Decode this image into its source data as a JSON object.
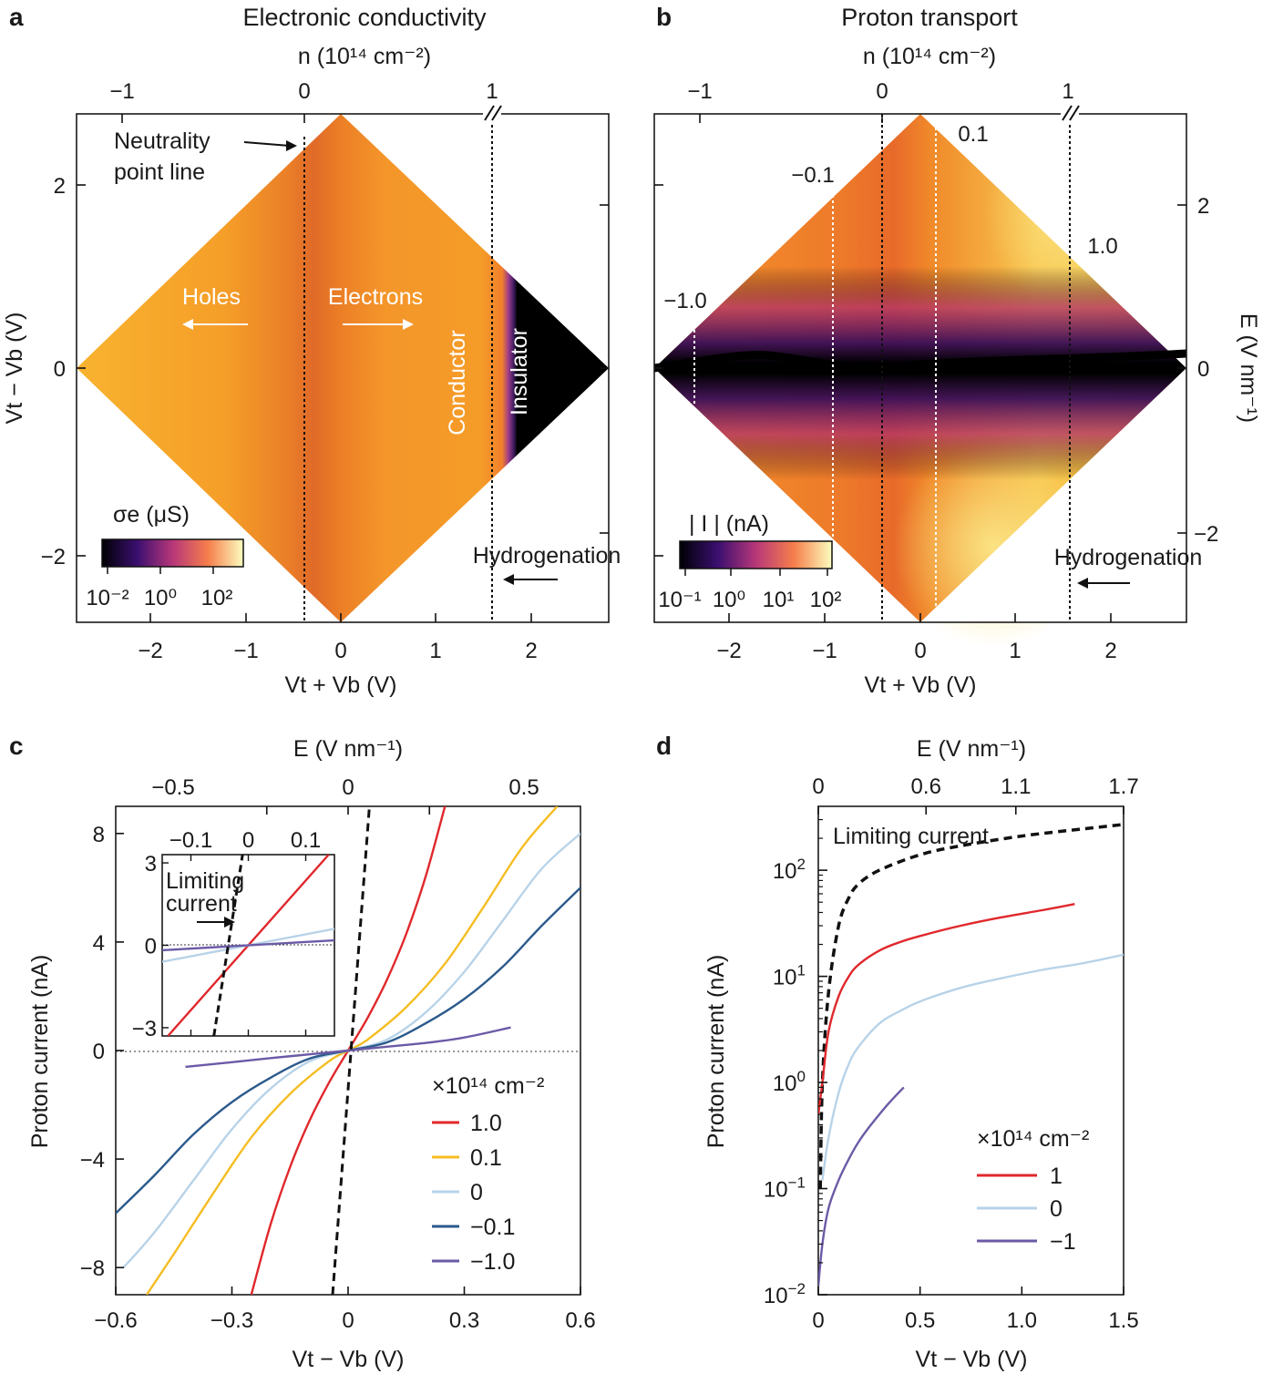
{
  "panels": {
    "a": {
      "letter": "a",
      "title": "Electronic conductivity",
      "top_axis": "n (10¹⁴ cm⁻²)",
      "top_ticks": [
        "−1",
        "0",
        "1"
      ],
      "x_label": "Vt + Vb (V)",
      "y_label": "Vt − Vb (V)",
      "x_ticks": [
        "−2",
        "−1",
        "0",
        "1",
        "2"
      ],
      "y_ticks": [
        "2",
        "0",
        "−2"
      ],
      "annotations": {
        "neutrality_1": "Neutrality",
        "neutrality_2": "point line",
        "holes": "Holes",
        "electrons": "Electrons",
        "conductor": "Conductor",
        "insulator": "Insulator",
        "hydrogenation": "Hydrogenation"
      },
      "colorbar": {
        "label": "σe (μS)",
        "ticks": [
          "10⁻²",
          "10⁰",
          "10²"
        ]
      }
    },
    "b": {
      "letter": "b",
      "title": "Proton transport",
      "top_axis": "n (10¹⁴ cm⁻²)",
      "top_ticks": [
        "−1",
        "0",
        "1"
      ],
      "x_label": "Vt + Vb (V)",
      "right_label": "E (V nm⁻¹)",
      "x_ticks": [
        "−2",
        "−1",
        "0",
        "1",
        "2"
      ],
      "right_ticks": [
        "2",
        "0",
        "−2"
      ],
      "line_labels": [
        "−1.0",
        "−0.1",
        "0.1",
        "1.0"
      ],
      "hydrogenation": "Hydrogenation",
      "colorbar": {
        "label": "| I | (nA)",
        "ticks": [
          "10⁻¹",
          "10⁰",
          "10¹",
          "10²"
        ]
      }
    },
    "c": {
      "letter": "c",
      "top_axis": "E (V nm⁻¹)",
      "top_ticks": [
        "−0.5",
        "0",
        "0.5"
      ],
      "x_label": "Vt − Vb (V)",
      "y_label": "Proton current (nA)",
      "inset_label_1": "Limiting",
      "inset_label_2": "current",
      "inset_x_ticks": [
        "−0.1",
        "0",
        "0.1"
      ],
      "inset_y_ticks": [
        "3",
        "0",
        "−3"
      ],
      "legend_title": "×10¹⁴ cm⁻²"
    },
    "d": {
      "letter": "d",
      "top_axis": "E (V nm⁻¹)",
      "top_ticks": [
        "0",
        "0.6",
        "1.1",
        "1.7"
      ],
      "x_label": "Vt − Vb (V)",
      "y_label": "Proton current (nA)",
      "limiting_label": "Limiting current",
      "legend_title": "×10¹⁴ cm⁻²"
    }
  },
  "chart_data": [
    {
      "panel": "a",
      "type": "heatmap",
      "title": "Electronic conductivity",
      "xlabel": "Vt + Vb (V)",
      "ylabel": "Vt − Vb (V)",
      "xlim": [
        -2.8,
        2.8
      ],
      "ylim": [
        -2.8,
        2.8
      ],
      "x_ticks": [
        -2,
        -1,
        0,
        1,
        2
      ],
      "y_ticks": [
        -2,
        0,
        2
      ],
      "top_ticks_n": [
        -1,
        0,
        1
      ],
      "top_ticks_x": [
        -2.3,
        -0.4,
        1.58
      ],
      "neutrality_x": -0.4,
      "hydrogenation_x": 1.58,
      "insulator_from_x": 1.55,
      "colorbar_range_uS": [
        0.01,
        500
      ]
    },
    {
      "panel": "b",
      "type": "heatmap",
      "title": "Proton transport",
      "xlabel": "Vt + Vb (V)",
      "right_label": "E (V nm⁻¹)",
      "xlim": [
        -2.8,
        2.8
      ],
      "ylim": [
        -2.8,
        2.8
      ],
      "x_ticks": [
        -2,
        -1,
        0,
        1,
        2
      ],
      "top_ticks_n": [
        -1,
        0,
        1
      ],
      "top_ticks_x": [
        -2.3,
        -0.4,
        1.58
      ],
      "right_ticks_E": [
        -2,
        0,
        2
      ],
      "constant_n_lines": [
        {
          "label": "−1.0",
          "x": -2.4,
          "n": -1.0
        },
        {
          "label": "−0.1",
          "x": -0.95,
          "n": -0.1
        },
        {
          "label": "0",
          "x": -0.4,
          "n": 0
        },
        {
          "label": "0.1",
          "x": 0.15,
          "n": 0.1
        },
        {
          "label": "1.0",
          "x": 1.58,
          "n": 1.0
        }
      ],
      "colorbar_range_nA": [
        0.1,
        150
      ]
    },
    {
      "panel": "c",
      "type": "line",
      "xlabel": "Vt − Vb (V)",
      "ylabel": "Proton current (nA)",
      "xlim": [
        -0.6,
        0.6
      ],
      "ylim": [
        -9,
        9
      ],
      "x_ticks": [
        -0.6,
        -0.3,
        0,
        0.3,
        0.6
      ],
      "y_ticks": [
        -8,
        -4,
        0,
        4,
        8
      ],
      "top_axis": "E (V nm⁻¹)",
      "top_ticks": [
        -0.5,
        0,
        0.5
      ],
      "legend_title": "×10¹⁴ cm⁻²",
      "series": [
        {
          "name": "1.0",
          "color": "#e0282c",
          "x": [
            -0.25,
            -0.2,
            -0.15,
            -0.1,
            -0.05,
            0,
            0.05,
            0.1,
            0.15,
            0.2,
            0.25
          ],
          "y": [
            -9.0,
            -6.4,
            -4.3,
            -2.6,
            -1.2,
            0,
            1.2,
            2.6,
            4.3,
            6.4,
            9.0
          ]
        },
        {
          "name": "0.1",
          "color": "#f5bd22",
          "x": [
            -0.52,
            -0.45,
            -0.35,
            -0.25,
            -0.15,
            -0.05,
            0,
            0.05,
            0.15,
            0.25,
            0.35,
            0.45,
            0.54
          ],
          "y": [
            -9.0,
            -7.5,
            -5.3,
            -3.2,
            -1.6,
            -0.4,
            0,
            0.4,
            1.6,
            3.2,
            5.3,
            7.5,
            9.0
          ]
        },
        {
          "name": "0",
          "color": "#b8d3e8",
          "x": [
            -0.58,
            -0.5,
            -0.4,
            -0.3,
            -0.2,
            -0.1,
            0,
            0.1,
            0.2,
            0.3,
            0.4,
            0.5,
            0.6
          ],
          "y": [
            -8.0,
            -6.7,
            -4.8,
            -2.9,
            -1.4,
            -0.4,
            0,
            0.4,
            1.4,
            2.9,
            4.8,
            6.7,
            8.0
          ]
        },
        {
          "name": "−0.1",
          "color": "#2c5a8c",
          "x": [
            -0.6,
            -0.5,
            -0.4,
            -0.3,
            -0.2,
            -0.1,
            0,
            0.1,
            0.2,
            0.3,
            0.4,
            0.5,
            0.6
          ],
          "y": [
            -6.0,
            -4.6,
            -3.1,
            -1.9,
            -1.0,
            -0.3,
            0,
            0.3,
            1.0,
            1.9,
            3.1,
            4.6,
            6.0
          ]
        },
        {
          "name": "−1.0",
          "color": "#6b5aa6",
          "x": [
            -0.42,
            -0.3,
            -0.2,
            -0.1,
            0,
            0.1,
            0.2,
            0.3,
            0.42
          ],
          "y": [
            -0.6,
            -0.43,
            -0.28,
            -0.14,
            0,
            0.14,
            0.28,
            0.48,
            0.85
          ]
        },
        {
          "name": "Limiting current",
          "color": "#111111",
          "dashed": true,
          "x": [
            -0.04,
            0.055
          ],
          "y": [
            -9.0,
            9.0
          ]
        }
      ],
      "inset": {
        "label": "Limiting current",
        "xlim": [
          -0.15,
          0.15
        ],
        "ylim": [
          -3.3,
          3.3
        ],
        "x_ticks": [
          -0.1,
          0,
          0.1
        ],
        "y_ticks": [
          -3,
          0,
          3
        ],
        "series": [
          {
            "name": "1.0",
            "color": "#e0282c",
            "x": [
              -0.14,
              0.14
            ],
            "y": [
              -3.3,
              3.3
            ]
          },
          {
            "name": "0",
            "color": "#b8d3e8",
            "x": [
              -0.15,
              0.15
            ],
            "y": [
              -0.6,
              0.6
            ]
          },
          {
            "name": "−1.0",
            "color": "#6b5aa6",
            "x": [
              -0.15,
              0.15
            ],
            "y": [
              -0.18,
              0.18
            ]
          },
          {
            "name": "Limiting current",
            "color": "#111111",
            "dashed": true,
            "x": [
              -0.06,
              -0.01
            ],
            "y": [
              -3.3,
              3.3
            ]
          }
        ]
      }
    },
    {
      "panel": "d",
      "type": "line",
      "xlabel": "Vt − Vb (V)",
      "ylabel": "Proton current (nA)",
      "xlim": [
        0,
        1.5
      ],
      "ylim": [
        0.01,
        400
      ],
      "yscale": "log",
      "x_ticks": [
        0,
        0.5,
        1.0,
        1.5
      ],
      "x_tick_labels": [
        "0",
        "0.5",
        "1.0",
        "1.5"
      ],
      "y_ticks": [
        0.01,
        0.1,
        1,
        10,
        100
      ],
      "top_axis": "E (V nm⁻¹)",
      "top_ticks": [
        0,
        0.6,
        1.1,
        1.7
      ],
      "legend_title": "×10¹⁴ cm⁻²",
      "series": [
        {
          "name": "Limiting current",
          "color": "#111111",
          "dashed": true,
          "x": [
            0.01,
            0.02,
            0.05,
            0.1,
            0.15,
            0.2,
            0.3,
            0.5,
            0.7,
            1.0,
            1.3,
            1.5
          ],
          "y": [
            0.1,
            1.0,
            7.0,
            30,
            55,
            75,
            100,
            140,
            170,
            210,
            245,
            270
          ]
        },
        {
          "name": "1",
          "color": "#e0282c",
          "x": [
            0.0,
            0.02,
            0.05,
            0.1,
            0.15,
            0.2,
            0.3,
            0.4,
            0.5,
            0.7,
            0.9,
            1.1,
            1.26
          ],
          "y": [
            0.5,
            1.0,
            3.0,
            6.5,
            10,
            13,
            17.5,
            21,
            24,
            30,
            36,
            42,
            48
          ]
        },
        {
          "name": "0",
          "color": "#b8d3e8",
          "x": [
            0.02,
            0.05,
            0.1,
            0.15,
            0.2,
            0.3,
            0.4,
            0.5,
            0.7,
            0.9,
            1.1,
            1.3,
            1.5
          ],
          "y": [
            0.12,
            0.3,
            0.8,
            1.5,
            2.2,
            3.6,
            4.7,
            5.8,
            7.8,
            9.6,
            11.5,
            13.3,
            16
          ]
        },
        {
          "name": "−1",
          "color": "#6b5aa6",
          "x": [
            0.0,
            0.02,
            0.05,
            0.1,
            0.15,
            0.2,
            0.25,
            0.3,
            0.35,
            0.42
          ],
          "y": [
            0.012,
            0.03,
            0.065,
            0.12,
            0.19,
            0.28,
            0.38,
            0.5,
            0.65,
            0.9
          ]
        }
      ]
    }
  ]
}
